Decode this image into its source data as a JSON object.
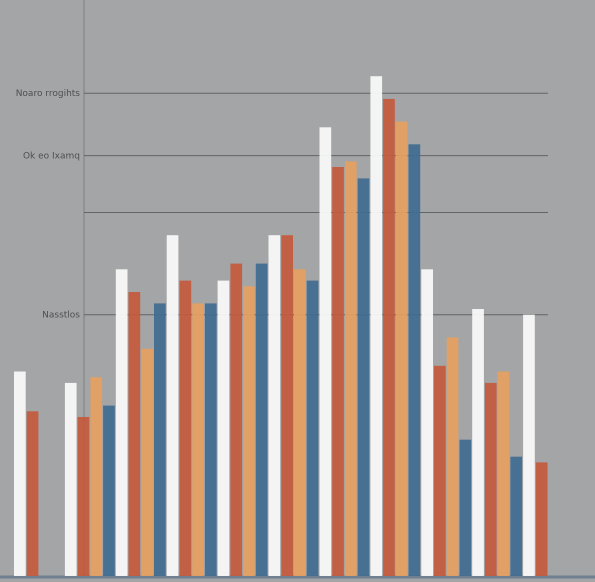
{
  "chart_data": {
    "type": "bar",
    "title": "",
    "xlabel": "",
    "ylabel": "",
    "grid": true,
    "legend": "none",
    "ylim": [
      0,
      100
    ],
    "annotations": [
      {
        "text": "Noaro rrogihts",
        "y": 85
      },
      {
        "text": "Ok eo Ixamq",
        "y": 74
      },
      {
        "text": "Nasstlos",
        "y": 46
      }
    ],
    "gridlines_y": [
      85,
      74,
      64,
      46
    ],
    "series": [
      {
        "color": "#f8f8f7",
        "values": [
          36,
          34,
          54,
          60,
          52,
          60,
          79,
          88,
          54,
          47,
          46
        ]
      },
      {
        "color": "#c45a3e",
        "values": [
          29,
          28,
          50,
          52,
          55,
          60,
          72,
          84,
          37,
          34,
          20
        ]
      },
      {
        "color": "#e6a060",
        "values": [
          0,
          35,
          40,
          48,
          51,
          54,
          73,
          80,
          42,
          36,
          0
        ]
      },
      {
        "color": "#3f6b91",
        "values": [
          0,
          30,
          48,
          48,
          55,
          52,
          70,
          76,
          24,
          21,
          0
        ]
      }
    ]
  },
  "colors": {
    "background": "#a3a5a6",
    "grid": "#626568",
    "axis": "#6e7f90"
  }
}
